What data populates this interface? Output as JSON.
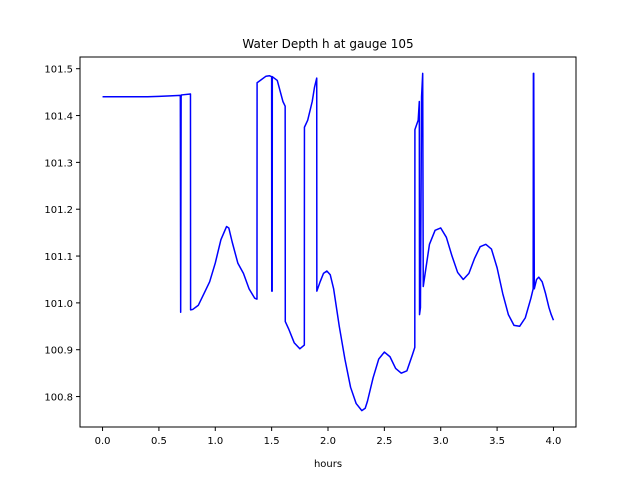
{
  "chart_data": {
    "type": "line",
    "title": "Water Depth h at gauge 105",
    "xlabel": "hours",
    "ylabel": "",
    "xlim": [
      -0.2,
      4.2
    ],
    "ylim": [
      100.735,
      101.525
    ],
    "grid": false,
    "x_ticks": [
      0.0,
      0.5,
      1.0,
      1.5,
      2.0,
      2.5,
      3.0,
      3.5,
      4.0
    ],
    "x_tick_labels": [
      "0.0",
      "0.5",
      "1.0",
      "1.5",
      "2.0",
      "2.5",
      "3.0",
      "3.5",
      "4.0"
    ],
    "y_ticks": [
      100.8,
      100.9,
      101.0,
      101.1,
      101.2,
      101.3,
      101.4,
      101.5
    ],
    "y_tick_labels": [
      "100.8",
      "100.9",
      "101.0",
      "101.1",
      "101.2",
      "101.3",
      "101.4",
      "101.5"
    ],
    "series": [
      {
        "color": "#0000ff",
        "points": [
          [
            0.0,
            101.44
          ],
          [
            0.1,
            101.44
          ],
          [
            0.2,
            101.44
          ],
          [
            0.3,
            101.44
          ],
          [
            0.4,
            101.44
          ],
          [
            0.5,
            101.441
          ],
          [
            0.6,
            101.442
          ],
          [
            0.69,
            101.443
          ],
          [
            0.693,
            100.98
          ],
          [
            0.697,
            101.44
          ],
          [
            0.7,
            101.444
          ],
          [
            0.78,
            101.446
          ],
          [
            0.781,
            100.985
          ],
          [
            0.8,
            100.986
          ],
          [
            0.85,
            100.995
          ],
          [
            0.9,
            101.02
          ],
          [
            0.95,
            101.045
          ],
          [
            1.0,
            101.085
          ],
          [
            1.05,
            101.135
          ],
          [
            1.1,
            101.163
          ],
          [
            1.12,
            101.16
          ],
          [
            1.15,
            101.13
          ],
          [
            1.2,
            101.085
          ],
          [
            1.25,
            101.063
          ],
          [
            1.3,
            101.03
          ],
          [
            1.35,
            101.01
          ],
          [
            1.37,
            101.008
          ],
          [
            1.371,
            101.47
          ],
          [
            1.4,
            101.475
          ],
          [
            1.45,
            101.484
          ],
          [
            1.48,
            101.485
          ],
          [
            1.5,
            101.483
          ],
          [
            1.501,
            101.025
          ],
          [
            1.505,
            101.025
          ],
          [
            1.506,
            101.483
          ],
          [
            1.55,
            101.475
          ],
          [
            1.6,
            101.43
          ],
          [
            1.62,
            101.42
          ],
          [
            1.621,
            100.96
          ],
          [
            1.65,
            100.945
          ],
          [
            1.7,
            100.915
          ],
          [
            1.75,
            100.902
          ],
          [
            1.79,
            100.91
          ],
          [
            1.791,
            101.375
          ],
          [
            1.82,
            101.39
          ],
          [
            1.86,
            101.43
          ],
          [
            1.88,
            101.46
          ],
          [
            1.9,
            101.48
          ],
          [
            1.901,
            101.025
          ],
          [
            1.93,
            101.045
          ],
          [
            1.96,
            101.063
          ],
          [
            1.99,
            101.068
          ],
          [
            2.02,
            101.06
          ],
          [
            2.05,
            101.03
          ],
          [
            2.1,
            100.95
          ],
          [
            2.15,
            100.88
          ],
          [
            2.2,
            100.82
          ],
          [
            2.25,
            100.785
          ],
          [
            2.3,
            100.77
          ],
          [
            2.33,
            100.775
          ],
          [
            2.35,
            100.79
          ],
          [
            2.4,
            100.84
          ],
          [
            2.45,
            100.88
          ],
          [
            2.5,
            100.895
          ],
          [
            2.55,
            100.885
          ],
          [
            2.6,
            100.86
          ],
          [
            2.65,
            100.85
          ],
          [
            2.7,
            100.855
          ],
          [
            2.75,
            100.89
          ],
          [
            2.77,
            100.905
          ],
          [
            2.771,
            101.37
          ],
          [
            2.8,
            101.39
          ],
          [
            2.81,
            101.43
          ],
          [
            2.812,
            100.975
          ],
          [
            2.82,
            100.99
          ],
          [
            2.83,
            101.44
          ],
          [
            2.84,
            101.49
          ],
          [
            2.845,
            101.035
          ],
          [
            2.86,
            101.06
          ],
          [
            2.9,
            101.125
          ],
          [
            2.95,
            101.155
          ],
          [
            3.0,
            101.16
          ],
          [
            3.05,
            101.14
          ],
          [
            3.1,
            101.1
          ],
          [
            3.15,
            101.065
          ],
          [
            3.2,
            101.05
          ],
          [
            3.25,
            101.063
          ],
          [
            3.3,
            101.095
          ],
          [
            3.35,
            101.12
          ],
          [
            3.4,
            101.125
          ],
          [
            3.45,
            101.115
          ],
          [
            3.5,
            101.075
          ],
          [
            3.55,
            101.02
          ],
          [
            3.6,
            100.975
          ],
          [
            3.65,
            100.952
          ],
          [
            3.7,
            100.95
          ],
          [
            3.75,
            100.968
          ],
          [
            3.8,
            101.01
          ],
          [
            3.82,
            101.03
          ],
          [
            3.822,
            101.49
          ],
          [
            3.825,
            101.49
          ],
          [
            3.83,
            101.03
          ],
          [
            3.85,
            101.05
          ],
          [
            3.87,
            101.055
          ],
          [
            3.9,
            101.045
          ],
          [
            3.93,
            101.02
          ],
          [
            3.96,
            100.99
          ],
          [
            3.98,
            100.975
          ],
          [
            4.0,
            100.963
          ]
        ]
      }
    ]
  }
}
